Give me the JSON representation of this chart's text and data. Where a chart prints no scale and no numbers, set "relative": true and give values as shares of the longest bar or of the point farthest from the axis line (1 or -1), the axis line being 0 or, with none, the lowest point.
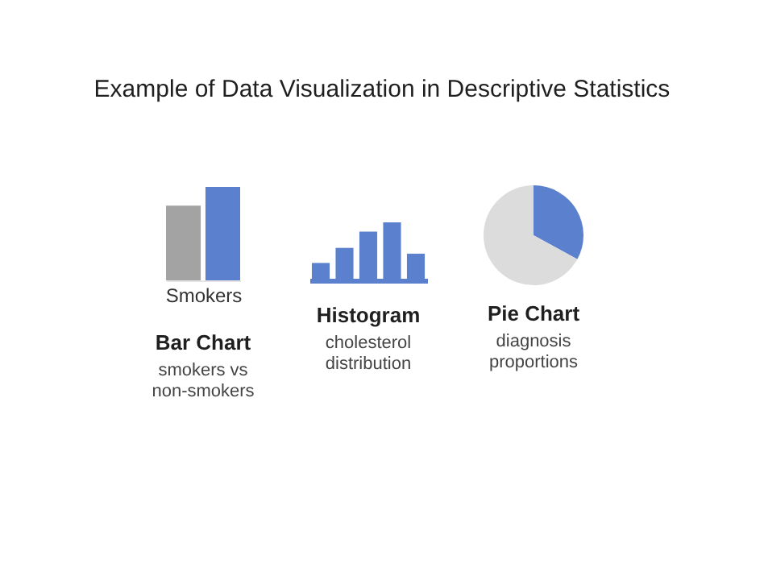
{
  "chart_data": [
    {
      "type": "other",
      "title": "Example of Data Visualization in Descriptive Statistics"
    },
    {
      "type": "bar",
      "relative": true,
      "title": "Bar Chart",
      "subtitle": "smokers vs non-smokers",
      "xlabel": "Smokers",
      "categories": [
        null,
        null
      ],
      "values": [
        0.8,
        1
      ],
      "colors": [
        "#a3a3a3",
        "#5b80cd"
      ]
    },
    {
      "type": "bar",
      "relative": true,
      "title": "Histogram",
      "subtitle": "cholesterol distribution",
      "categories": [
        null,
        null,
        null,
        null,
        null
      ],
      "values": [
        0.3,
        0.56,
        0.84,
        1,
        0.46
      ],
      "color": "#5b80cd"
    },
    {
      "type": "pie",
      "title": "Pie Chart",
      "subtitle": "diagnosis proportions",
      "categories": [
        null,
        null
      ],
      "values": [
        33,
        67
      ],
      "colors": [
        "#5b80cd",
        "#dcdcdc"
      ]
    }
  ]
}
